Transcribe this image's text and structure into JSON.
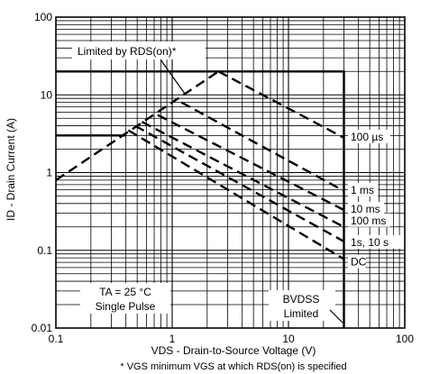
{
  "chart_data": {
    "type": "line",
    "title": "",
    "xlabel": "VDS - Drain-to-Source Voltage (V)",
    "ylabel": "ID - Drain Current (A)",
    "xscale": "log",
    "yscale": "log",
    "xlim": [
      0.1,
      100
    ],
    "ylim": [
      0.01,
      100
    ],
    "grid": true,
    "x_ticks": [
      "0.1",
      "1",
      "10",
      "100"
    ],
    "y_ticks": [
      "0.01",
      "0.1",
      "1",
      "10",
      "100"
    ],
    "footnote": "* VGS minimum VGS at which RDS(on) is specified",
    "annotations": {
      "rds_limit": "Limited by RDS(on)*",
      "conditions_line1": "TA = 25 °C",
      "conditions_line2": "Single Pulse",
      "bvdss_line1": "BVDSS",
      "bvdss_line2": "Limited"
    },
    "series": [
      {
        "name": "",
        "style": "solid",
        "x": [
          0.1,
          30,
          30
        ],
        "y": [
          20,
          20,
          0.01
        ]
      },
      {
        "name": "",
        "style": "solid",
        "x": [
          0.1,
          0.4
        ],
        "y": [
          3,
          3
        ]
      },
      {
        "name": "",
        "style": "dashed",
        "x": [
          0.1,
          2.5
        ],
        "y": [
          0.8,
          20
        ]
      },
      {
        "name": "100 µs",
        "style": "dashed",
        "x": [
          2.5,
          30
        ],
        "y": [
          20,
          2.8
        ]
      },
      {
        "name": "1 ms",
        "style": "dashed",
        "x": [
          1.2,
          30
        ],
        "y": [
          8,
          0.58
        ]
      },
      {
        "name": "10 ms",
        "style": "dashed",
        "x": [
          0.75,
          30
        ],
        "y": [
          5.5,
          0.33
        ]
      },
      {
        "name": "100 ms",
        "style": "dashed",
        "x": [
          0.55,
          30
        ],
        "y": [
          4.5,
          0.2
        ]
      },
      {
        "name": "1s, 10 s",
        "style": "dashed",
        "x": [
          0.48,
          30
        ],
        "y": [
          4.0,
          0.13
        ]
      },
      {
        "name": "DC",
        "style": "dashed",
        "x": [
          0.42,
          30
        ],
        "y": [
          3.5,
          0.077
        ]
      }
    ]
  }
}
